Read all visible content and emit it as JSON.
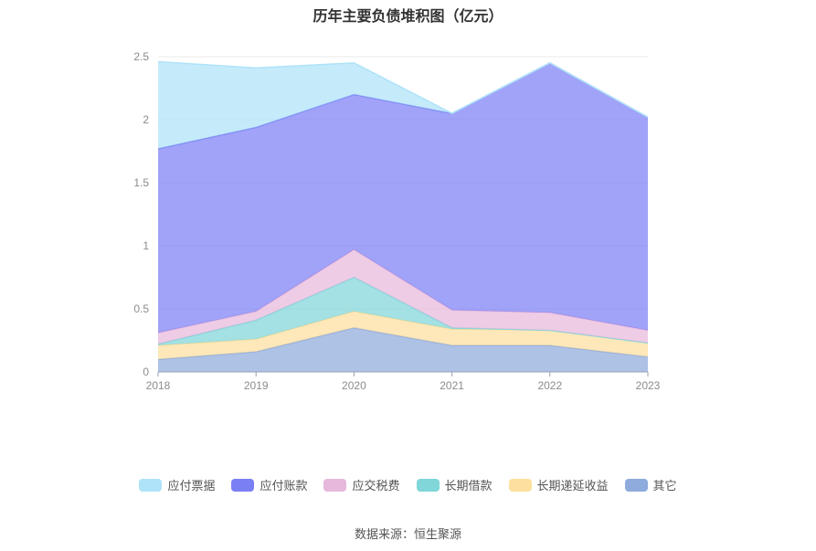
{
  "chart_data": {
    "type": "area",
    "stacked": true,
    "title": "历年主要负债堆积图（亿元）",
    "x": [
      "2018",
      "2019",
      "2020",
      "2021",
      "2022",
      "2023"
    ],
    "yticks": [
      "0",
      "0.5",
      "1",
      "1.5",
      "2",
      "2.5"
    ],
    "ylim": [
      0,
      2.5
    ],
    "grid": true,
    "legend_position": "bottom",
    "series": [
      {
        "name": "其它",
        "color": "#8fabdd",
        "values": [
          0.1,
          0.16,
          0.35,
          0.21,
          0.21,
          0.12
        ]
      },
      {
        "name": "长期递延收益",
        "color": "#fddf9f",
        "values": [
          0.11,
          0.1,
          0.13,
          0.13,
          0.12,
          0.11
        ]
      },
      {
        "name": "长期借款",
        "color": "#80d6d9",
        "values": [
          0.01,
          0.15,
          0.27,
          0.01,
          0.0,
          0.0
        ]
      },
      {
        "name": "应交税费",
        "color": "#e7b8dc",
        "values": [
          0.09,
          0.07,
          0.22,
          0.14,
          0.14,
          0.1
        ]
      },
      {
        "name": "应付账款",
        "color": "#7b7ff4",
        "values": [
          1.46,
          1.46,
          1.23,
          1.56,
          1.98,
          1.69
        ]
      },
      {
        "name": "应付票据",
        "color": "#aee3f9",
        "values": [
          0.69,
          0.47,
          0.25,
          0.0,
          0.0,
          0.0
        ]
      }
    ],
    "legend_order": [
      "应付票据",
      "应付账款",
      "应交税费",
      "长期借款",
      "长期递延收益",
      "其它"
    ]
  },
  "source_note": "数据来源：恒生聚源"
}
